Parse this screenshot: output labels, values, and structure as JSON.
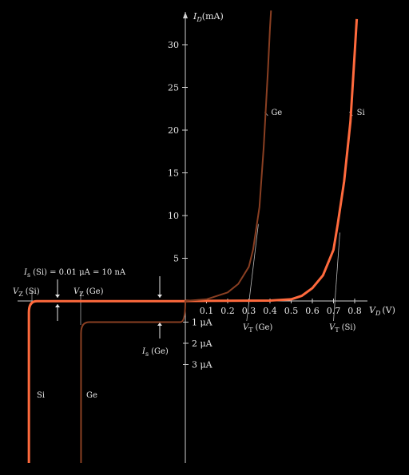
{
  "chart_data": {
    "type": "line",
    "x_axis_label": "V_D (V)",
    "y_axis_label": "I_D (mA)",
    "x_ticks": [
      {
        "value": 0.1,
        "label": "0.1"
      },
      {
        "value": 0.2,
        "label": "0.2"
      },
      {
        "value": 0.3,
        "label": "0.3"
      },
      {
        "value": 0.4,
        "label": "0.4"
      },
      {
        "value": 0.5,
        "label": "0.5"
      },
      {
        "value": 0.6,
        "label": "0.6"
      },
      {
        "value": 0.7,
        "label": "0.7"
      },
      {
        "value": 0.8,
        "label": "0.8"
      }
    ],
    "y_ticks_forward": [
      {
        "value": 5,
        "label": "5"
      },
      {
        "value": 10,
        "label": "10"
      },
      {
        "value": 15,
        "label": "15"
      },
      {
        "value": 20,
        "label": "20"
      },
      {
        "value": 25,
        "label": "25"
      },
      {
        "value": 30,
        "label": "30"
      }
    ],
    "y_ticks_reverse": [
      {
        "value": 1,
        "label": "1 μA"
      },
      {
        "value": 2,
        "label": "2 μA"
      },
      {
        "value": 3,
        "label": "3 μA"
      }
    ],
    "series": [
      {
        "name": "Si",
        "color": "#ff6a3d",
        "forward": [
          [
            0.0,
            0
          ],
          [
            0.4,
            0.05
          ],
          [
            0.5,
            0.2
          ],
          [
            0.55,
            0.6
          ],
          [
            0.6,
            1.5
          ],
          [
            0.65,
            3
          ],
          [
            0.7,
            6
          ],
          [
            0.72,
            9
          ],
          [
            0.75,
            14
          ],
          [
            0.78,
            21
          ],
          [
            0.8,
            29
          ],
          [
            0.81,
            33
          ]
        ],
        "reverse_saturation_uA": 0.01,
        "breakdown_voltage_V": -0.72
      },
      {
        "name": "Ge",
        "color": "#8a3f22",
        "forward": [
          [
            0.0,
            0
          ],
          [
            0.1,
            0.2
          ],
          [
            0.2,
            1
          ],
          [
            0.25,
            2
          ],
          [
            0.3,
            4
          ],
          [
            0.32,
            6
          ],
          [
            0.35,
            11
          ],
          [
            0.37,
            18
          ],
          [
            0.39,
            27
          ],
          [
            0.4,
            32
          ],
          [
            0.405,
            34
          ]
        ],
        "reverse_saturation_uA": 1,
        "breakdown_voltage_V": -0.48
      }
    ],
    "annotations": {
      "is_si_label": "I",
      "is_si_sub": "s",
      "is_si_text": "(Si) = 0.01 μA = 10 nA",
      "vz_si_main": "V",
      "vz_si_sub": "Z",
      "vz_si_text": "(Si)",
      "vz_ge_main": "V",
      "vz_ge_sub": "Z",
      "vz_ge_text": "(Ge)",
      "is_ge_main": "I",
      "is_ge_sub": "s",
      "is_ge_text": "(Ge)",
      "vt_ge_main": "V",
      "vt_ge_sub": "T",
      "vt_ge_text": "(Ge)",
      "vt_si_main": "V",
      "vt_si_sub": "T",
      "vt_si_text": "(Si)",
      "ge_curve_label": "Ge",
      "si_curve_label": "Si",
      "si_reverse_label": "Si",
      "ge_reverse_label": "Ge"
    }
  }
}
